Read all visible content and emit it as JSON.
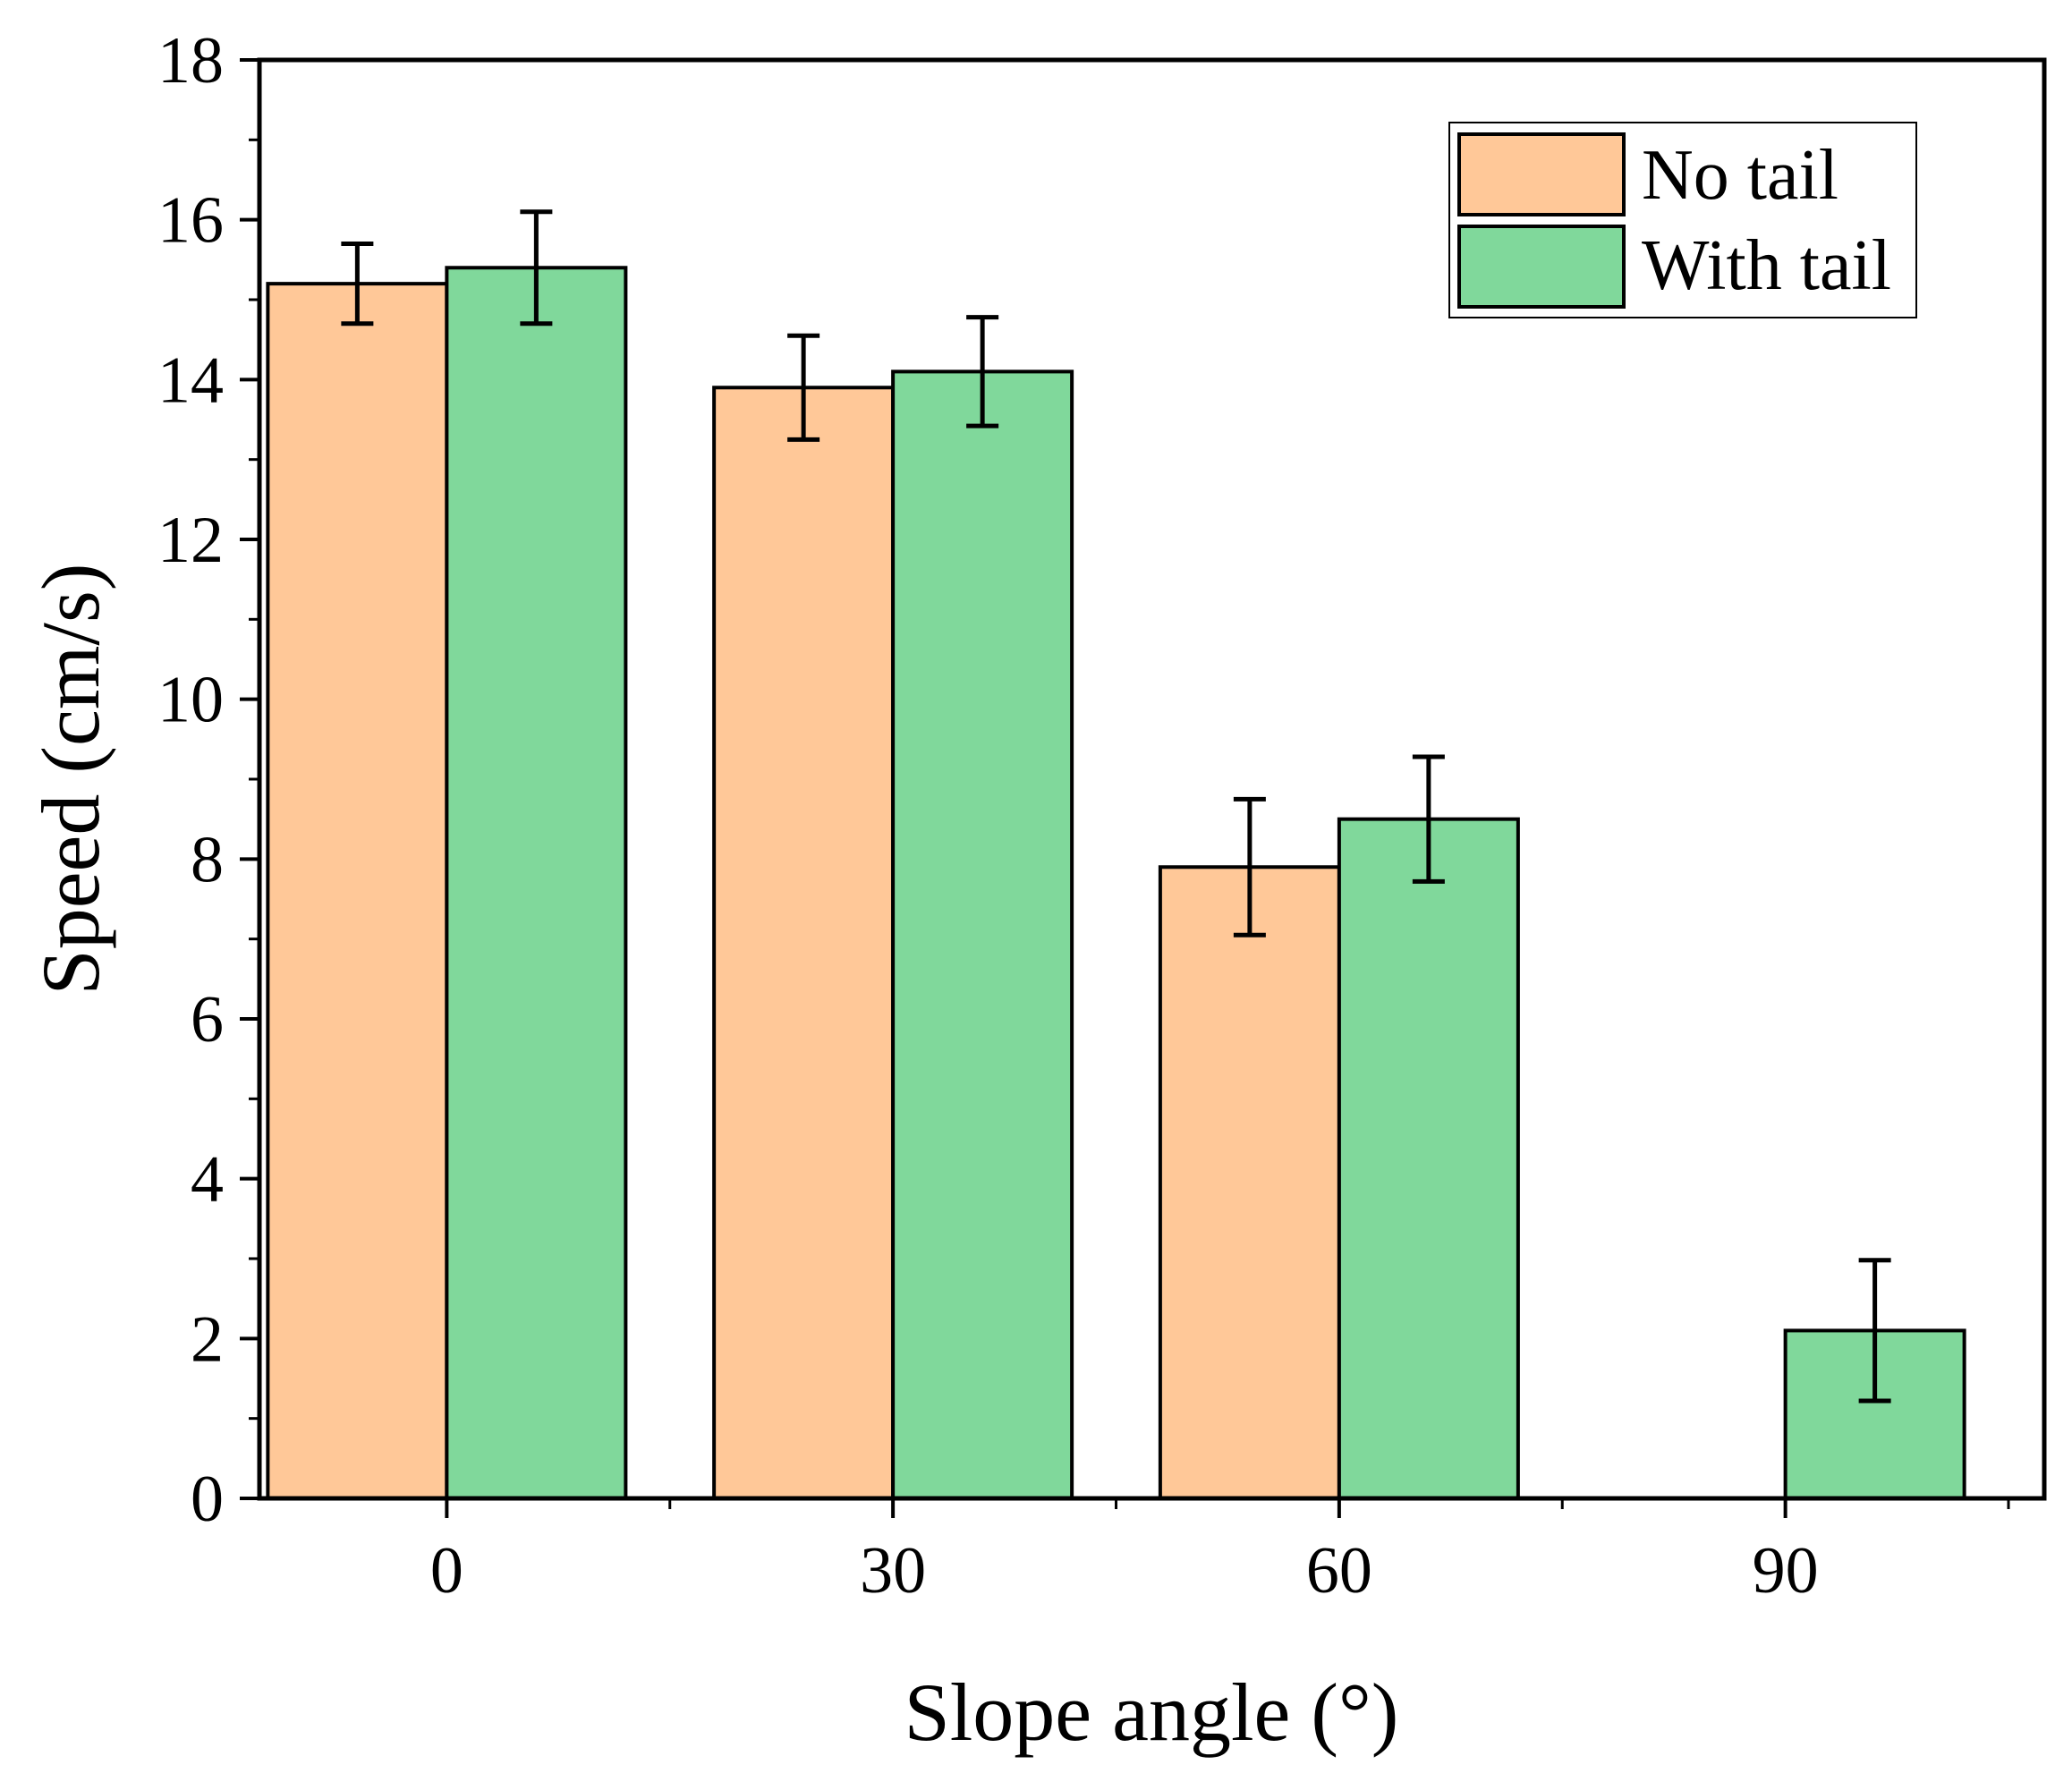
{
  "chart_data": {
    "type": "bar",
    "title": "",
    "xlabel": "Slope angle (°)",
    "ylabel": "Speed (cm/s)",
    "categories": [
      "0",
      "30",
      "60",
      "90"
    ],
    "ylim": [
      0,
      18
    ],
    "yticks": [
      "0",
      "2",
      "4",
      "6",
      "8",
      "10",
      "12",
      "14",
      "16",
      "18"
    ],
    "grid": false,
    "legend_position": "top-right",
    "series": [
      {
        "name": "No tail",
        "color": "#FFC898",
        "values": [
          15.2,
          13.9,
          7.9,
          null
        ],
        "errors": [
          0.5,
          0.65,
          0.85,
          null
        ]
      },
      {
        "name": "With tail",
        "color": "#80D89B",
        "values": [
          15.4,
          14.1,
          8.5,
          2.1
        ],
        "errors": [
          0.7,
          0.68,
          0.78,
          0.88
        ]
      }
    ]
  }
}
